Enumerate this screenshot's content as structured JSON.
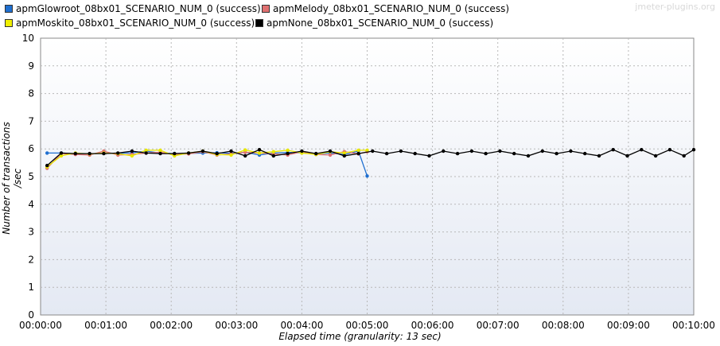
{
  "watermark": "jmeter-plugins.org",
  "chart_data": {
    "type": "line",
    "xlabel": "Elapsed time (granularity: 13 sec)",
    "ylabel": "Number of transactions /sec",
    "xlim_seconds": [
      0,
      600
    ],
    "ylim": [
      0,
      10
    ],
    "y_ticks": [
      "0",
      "1",
      "2",
      "3",
      "4",
      "5",
      "6",
      "7",
      "8",
      "9",
      "10"
    ],
    "x_ticks": [
      "00:00:00",
      "00:01:00",
      "00:02:00",
      "00:03:00",
      "00:04:00",
      "00:05:00",
      "00:06:00",
      "00:07:00",
      "00:08:00",
      "00:09:00",
      "00:10:00"
    ],
    "x_tick_seconds": [
      0,
      60,
      120,
      180,
      240,
      300,
      360,
      420,
      480,
      540,
      600
    ],
    "grid": true,
    "legend_position": "top-left",
    "series": [
      {
        "name": "apmGlowroot_08bx01_SCENARIO_NUM_0 (success)",
        "color": "#1f6fd0",
        "x": [
          6,
          19,
          32,
          45,
          58,
          71,
          84,
          97,
          110,
          123,
          136,
          149,
          162,
          175,
          188,
          201,
          214,
          227,
          240,
          253,
          266,
          279,
          292,
          300
        ],
        "values": [
          5.85,
          5.85,
          5.83,
          5.82,
          5.85,
          5.84,
          5.86,
          5.92,
          5.85,
          5.83,
          5.84,
          5.85,
          5.86,
          5.84,
          5.88,
          5.78,
          5.85,
          5.87,
          5.86,
          5.82,
          5.85,
          5.8,
          5.92,
          5.02
        ]
      },
      {
        "name": "apmMelody_08bx01_SCENARIO_NUM_0 (success)",
        "color": "#e07070",
        "x": [
          6,
          19,
          32,
          45,
          58,
          71,
          84,
          97,
          110,
          123,
          136,
          149,
          162,
          175,
          188,
          201,
          214,
          227,
          240,
          253,
          266,
          279,
          292,
          300
        ],
        "values": [
          5.3,
          5.83,
          5.8,
          5.78,
          5.92,
          5.78,
          5.8,
          5.85,
          5.88,
          5.8,
          5.82,
          5.9,
          5.78,
          5.82,
          5.88,
          5.85,
          5.82,
          5.78,
          5.9,
          5.8,
          5.78,
          5.9,
          5.82,
          5.9
        ]
      },
      {
        "name": "apmMoskito_08bx01_SCENARIO_NUM_0 (success)",
        "color": "#e8e800",
        "x": [
          6,
          19,
          32,
          45,
          58,
          71,
          84,
          97,
          110,
          123,
          136,
          149,
          162,
          175,
          188,
          201,
          214,
          227,
          240,
          253,
          266,
          279,
          292,
          300
        ],
        "values": [
          5.35,
          5.75,
          5.85,
          5.82,
          5.85,
          5.83,
          5.75,
          5.95,
          5.95,
          5.75,
          5.85,
          5.92,
          5.8,
          5.78,
          5.96,
          5.85,
          5.9,
          5.95,
          5.85,
          5.8,
          5.9,
          5.85,
          5.95,
          5.95
        ]
      },
      {
        "name": "apmNone_08bx01_SCENARIO_NUM_0 (success)",
        "color": "#000000",
        "x": [
          6,
          19,
          32,
          45,
          58,
          71,
          84,
          97,
          110,
          123,
          136,
          149,
          162,
          175,
          188,
          201,
          214,
          227,
          240,
          253,
          266,
          279,
          292,
          305,
          318,
          331,
          344,
          357,
          370,
          383,
          396,
          409,
          422,
          435,
          448,
          461,
          474,
          487,
          500,
          513,
          526,
          539,
          552,
          565,
          578,
          591,
          600
        ],
        "values": [
          5.4,
          5.85,
          5.83,
          5.83,
          5.83,
          5.85,
          5.92,
          5.85,
          5.83,
          5.83,
          5.85,
          5.92,
          5.83,
          5.92,
          5.75,
          5.97,
          5.75,
          5.83,
          5.92,
          5.83,
          5.92,
          5.75,
          5.83,
          5.92,
          5.83,
          5.92,
          5.83,
          5.75,
          5.92,
          5.83,
          5.92,
          5.83,
          5.92,
          5.83,
          5.75,
          5.92,
          5.83,
          5.92,
          5.83,
          5.75,
          5.97,
          5.75,
          5.97,
          5.75,
          5.97,
          5.75,
          5.97
        ]
      }
    ]
  }
}
